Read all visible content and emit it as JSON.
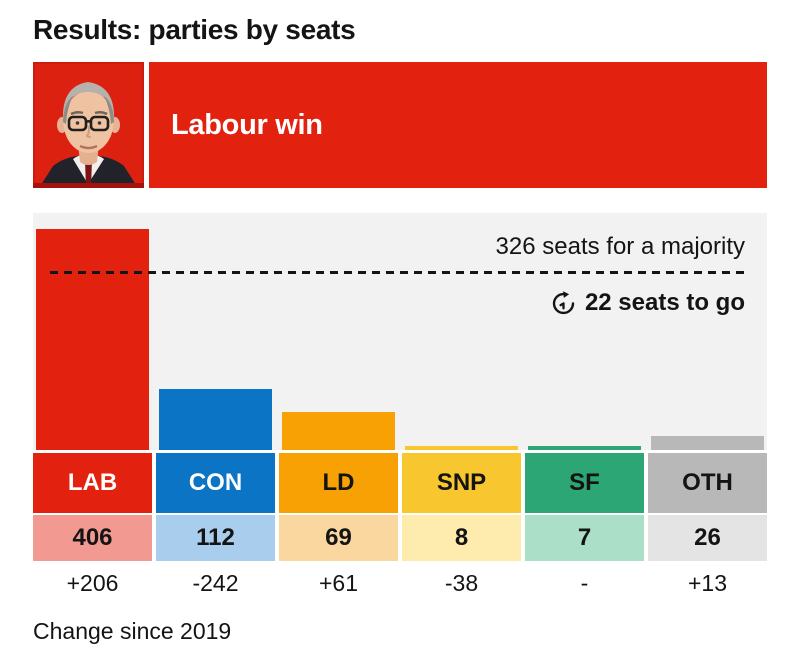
{
  "page": {
    "title": "Results: parties by seats",
    "footnote": "Change since 2019"
  },
  "banner": {
    "headline": "Labour win",
    "background": "#e2210f"
  },
  "chart": {
    "majority_label": "326 seats for a majority",
    "seats_to_go_label": "22 seats to go",
    "panel_background": "#f2f2f2"
  },
  "chart_data": {
    "type": "bar",
    "title": "Results: parties by seats",
    "categories": [
      "LAB",
      "CON",
      "LD",
      "SNP",
      "SF",
      "OTH"
    ],
    "values": [
      406,
      112,
      69,
      8,
      7,
      26
    ],
    "changes": [
      "+206",
      "-242",
      "+61",
      "-38",
      "-",
      "+13"
    ],
    "change_note": "Change since 2019",
    "majority_line_seats": 326,
    "majority_label": "326 seats for a majority",
    "seats_to_go": 22,
    "ylim": [
      0,
      406
    ],
    "legend_position": "none",
    "grid": false,
    "colors": [
      "#e2210f",
      "#0b74c4",
      "#f8a105",
      "#f8c72f",
      "#2ba674",
      "#b8b8b8"
    ],
    "value_tints": [
      "#f29a92",
      "#a9cdec",
      "#fbd7a0",
      "#fdecae",
      "#abdfc8",
      "#e4e4e4"
    ],
    "label_text_colors": [
      "#ffffff",
      "#ffffff",
      "#141414",
      "#141414",
      "#141414",
      "#141414"
    ]
  }
}
